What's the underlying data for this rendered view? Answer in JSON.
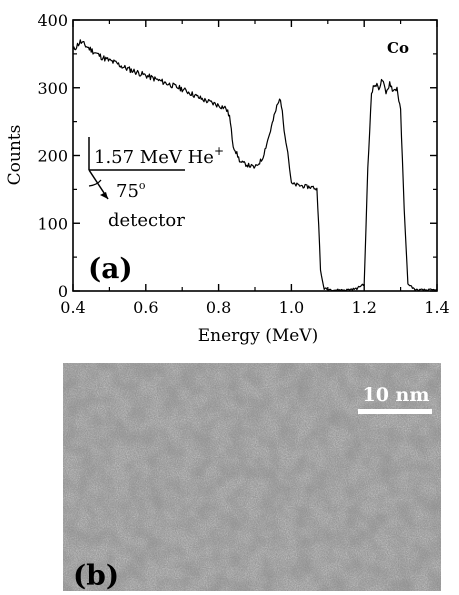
{
  "chart_data": {
    "type": "line",
    "panel_label": "(a)",
    "xlabel": "Energy (MeV)",
    "ylabel": "Counts",
    "xlim": [
      0.4,
      1.4
    ],
    "ylim": [
      0,
      400
    ],
    "xticks": [
      0.4,
      0.6,
      0.8,
      1.0,
      1.2,
      1.4
    ],
    "xtick_labels": [
      "0.4",
      "0.6",
      "0.8",
      "1.0",
      "1.2",
      "1.4"
    ],
    "yticks": [
      0,
      100,
      200,
      300,
      400
    ],
    "ytick_labels": [
      "0",
      "100",
      "200",
      "300",
      "400"
    ],
    "grid": false,
    "series": [
      {
        "color": "#000000",
        "points": [
          [
            0.4,
            355
          ],
          [
            0.42,
            368
          ],
          [
            0.44,
            360
          ],
          [
            0.46,
            352
          ],
          [
            0.48,
            345
          ],
          [
            0.5,
            340
          ],
          [
            0.52,
            336
          ],
          [
            0.54,
            330
          ],
          [
            0.56,
            326
          ],
          [
            0.58,
            322
          ],
          [
            0.6,
            318
          ],
          [
            0.62,
            314
          ],
          [
            0.64,
            310
          ],
          [
            0.66,
            306
          ],
          [
            0.68,
            302
          ],
          [
            0.7,
            298
          ],
          [
            0.72,
            293
          ],
          [
            0.74,
            287
          ],
          [
            0.76,
            282
          ],
          [
            0.78,
            278
          ],
          [
            0.8,
            274
          ],
          [
            0.82,
            270
          ],
          [
            0.83,
            258
          ],
          [
            0.84,
            215
          ],
          [
            0.86,
            190
          ],
          [
            0.88,
            186
          ],
          [
            0.9,
            182
          ],
          [
            0.92,
            195
          ],
          [
            0.94,
            232
          ],
          [
            0.96,
            272
          ],
          [
            0.97,
            285
          ],
          [
            0.98,
            240
          ],
          [
            0.99,
            205
          ],
          [
            1.0,
            158
          ],
          [
            1.02,
            156
          ],
          [
            1.04,
            154
          ],
          [
            1.06,
            153
          ],
          [
            1.07,
            150
          ],
          [
            1.075,
            100
          ],
          [
            1.08,
            30
          ],
          [
            1.09,
            2
          ],
          [
            1.12,
            0
          ],
          [
            1.15,
            0
          ],
          [
            1.18,
            2
          ],
          [
            1.2,
            10
          ],
          [
            1.21,
            180
          ],
          [
            1.22,
            295
          ],
          [
            1.23,
            305
          ],
          [
            1.24,
            300
          ],
          [
            1.25,
            312
          ],
          [
            1.26,
            290
          ],
          [
            1.27,
            308
          ],
          [
            1.28,
            295
          ],
          [
            1.29,
            300
          ],
          [
            1.3,
            265
          ],
          [
            1.31,
            120
          ],
          [
            1.32,
            10
          ],
          [
            1.34,
            0
          ],
          [
            1.36,
            0
          ],
          [
            1.38,
            0
          ],
          [
            1.4,
            0
          ]
        ]
      }
    ],
    "annotations": {
      "co": "Co",
      "beam": "1.57 MeV He",
      "beam_sup": "+",
      "angle": "75",
      "angle_unit": "o",
      "detector": "detector"
    }
  },
  "panel_b": {
    "label": "(b)",
    "scale_bar": "10 nm"
  }
}
